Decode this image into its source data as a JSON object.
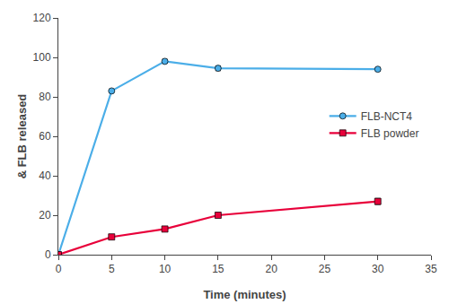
{
  "chart_data": {
    "type": "line",
    "x": [
      0,
      5,
      10,
      15,
      30
    ],
    "series": [
      {
        "name": "FLB-NCT4",
        "color": "#4baee8",
        "marker": "circle",
        "values": [
          0,
          83,
          98,
          94.5,
          94
        ],
        "yerr": [
          0,
          0.5,
          1.0,
          1.2,
          0.8
        ]
      },
      {
        "name": "FLB powder",
        "color": "#e8003a",
        "marker": "square",
        "values": [
          0,
          9,
          13,
          20,
          27
        ],
        "yerr": [
          0,
          0,
          0,
          1.2,
          1.5
        ]
      }
    ],
    "xlabel": "Time (minutes)",
    "ylabel": "& FLB released",
    "xlim": [
      0,
      35
    ],
    "ylim": [
      0,
      120
    ],
    "xticks": [
      0,
      5,
      10,
      15,
      20,
      25,
      30,
      35
    ],
    "yticks": [
      0,
      20,
      40,
      60,
      80,
      100,
      120
    ],
    "grid": false,
    "legend": "right"
  }
}
